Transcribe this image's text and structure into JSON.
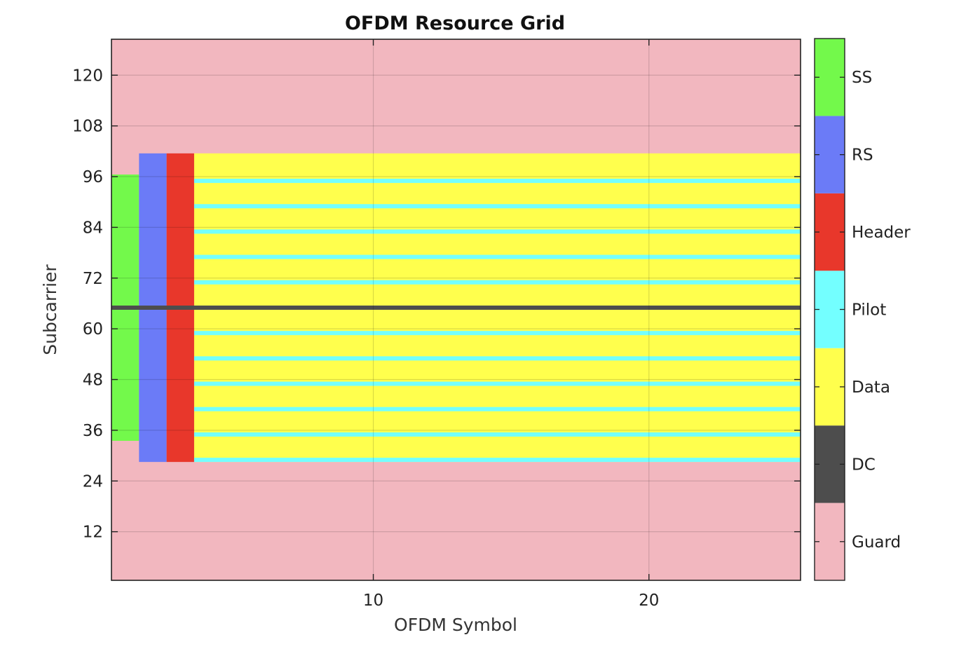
{
  "chart_data": {
    "type": "heatmap",
    "title": "OFDM Resource Grid",
    "xlabel": "OFDM Symbol",
    "ylabel": "Subcarrier",
    "xlim": [
      0.5,
      25.5
    ],
    "ylim": [
      0.5,
      128.5
    ],
    "xticks": [
      10,
      20
    ],
    "yticks": [
      12,
      24,
      36,
      48,
      60,
      72,
      84,
      96,
      108,
      120
    ],
    "grid": true,
    "categories": [
      {
        "label": "Guard",
        "color": "#F2B7BF"
      },
      {
        "label": "DC",
        "color": "#4D4D4D"
      },
      {
        "label": "Data",
        "color": "#FFFF4D"
      },
      {
        "label": "Pilot",
        "color": "#73FFFF"
      },
      {
        "label": "Header",
        "color": "#E8372B"
      },
      {
        "label": "RS",
        "color": "#6B7BF7"
      },
      {
        "label": "SS",
        "color": "#73F94B"
      }
    ],
    "background": "Guard",
    "regions": [
      {
        "category": "SS",
        "symbols": [
          1,
          1
        ],
        "subcarriers": [
          34,
          96
        ]
      },
      {
        "category": "RS",
        "symbols": [
          2,
          2
        ],
        "subcarriers": [
          29,
          101
        ]
      },
      {
        "category": "Header",
        "symbols": [
          3,
          3
        ],
        "subcarriers": [
          29,
          101
        ]
      },
      {
        "category": "Data",
        "symbols": [
          4,
          25
        ],
        "subcarriers": [
          29,
          101
        ]
      },
      {
        "category": "DC",
        "symbols": [
          1,
          25
        ],
        "subcarriers": [
          65,
          65
        ]
      }
    ],
    "pilot_subcarriers": [
      29,
      35,
      41,
      47,
      53,
      59,
      65,
      71,
      77,
      83,
      89,
      95
    ],
    "pilot_symbols": [
      4,
      25
    ]
  }
}
